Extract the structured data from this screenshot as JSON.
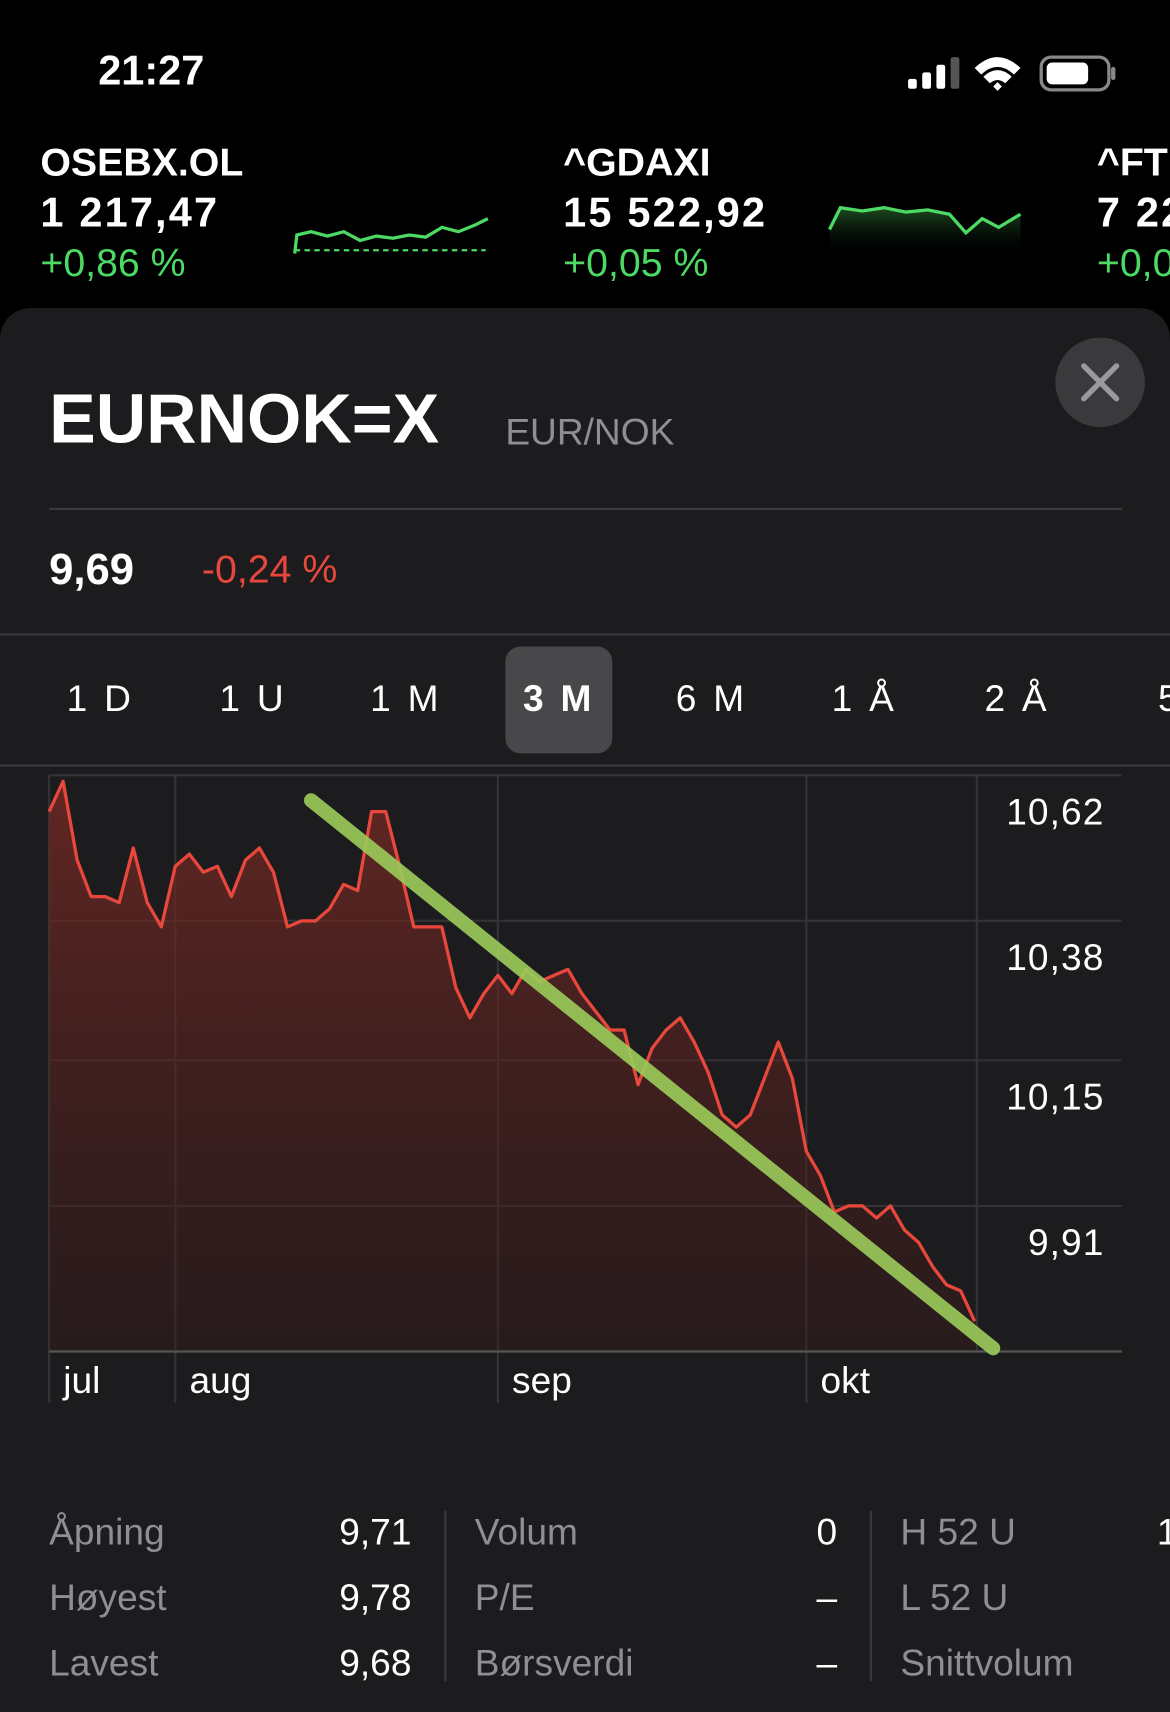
{
  "status_bar": {
    "time": "21:27"
  },
  "tickers": [
    {
      "symbol": "OSEBX.OL",
      "price": "1 217,47",
      "change": "+0,86 %"
    },
    {
      "symbol": "^GDAXI",
      "price": "15 522,92",
      "change": "+0,05 %"
    },
    {
      "symbol": "^FT",
      "price": "7 22",
      "change": "+0,0"
    }
  ],
  "header": {
    "symbol": "EURNOK=X",
    "name": "EUR/NOK",
    "price": "9,69",
    "change": "-0,24 %"
  },
  "ranges": {
    "items": [
      "1 D",
      "1 U",
      "1 M",
      "3 M",
      "6 M",
      "1 Å",
      "2 Å",
      "5"
    ],
    "selected": 3
  },
  "chart_data": {
    "type": "line",
    "color": "#e8483c",
    "x": [
      0,
      1,
      2,
      3,
      4,
      5,
      6,
      7,
      8,
      9,
      10,
      11,
      12,
      13,
      14,
      15,
      16,
      17,
      18,
      19,
      20,
      21,
      22,
      23,
      24,
      25,
      26,
      27,
      28,
      29,
      30,
      31,
      32,
      33,
      34,
      35,
      36,
      37,
      38,
      39,
      40,
      41,
      42,
      43,
      44,
      45,
      46,
      47,
      48,
      49,
      50,
      51,
      52,
      53,
      54,
      55,
      56,
      57,
      58,
      59,
      60,
      61,
      62,
      63,
      64,
      65,
      66
    ],
    "values": [
      10.56,
      10.61,
      10.48,
      10.42,
      10.42,
      10.41,
      10.5,
      10.41,
      10.37,
      10.47,
      10.49,
      10.46,
      10.47,
      10.42,
      10.48,
      10.5,
      10.46,
      10.37,
      10.38,
      10.38,
      10.4,
      10.44,
      10.43,
      10.56,
      10.56,
      10.47,
      10.37,
      10.37,
      10.37,
      10.27,
      10.22,
      10.26,
      10.29,
      10.26,
      10.3,
      10.28,
      10.29,
      10.3,
      10.26,
      10.23,
      10.2,
      10.2,
      10.11,
      10.17,
      10.2,
      10.22,
      10.18,
      10.13,
      10.06,
      10.04,
      10.06,
      10.12,
      10.18,
      10.12,
      10,
      9.96,
      9.9,
      9.91,
      9.91,
      9.89,
      9.91,
      9.87,
      9.85,
      9.81,
      9.78,
      9.77,
      9.72
    ],
    "xlim": [
      0,
      66
    ],
    "xticks": [
      {
        "value": 0,
        "label": "jul"
      },
      {
        "value": 9,
        "label": "aug"
      },
      {
        "value": 32,
        "label": "sep"
      },
      {
        "value": 54,
        "label": "okt"
      }
    ],
    "ylim": [
      9.67,
      10.62
    ],
    "yticks": [
      {
        "value": 10.62,
        "label": "10,62"
      },
      {
        "value": 10.38,
        "label": "10,38"
      },
      {
        "value": 10.15,
        "label": "10,15"
      },
      {
        "value": 9.91,
        "label": "9,91"
      }
    ],
    "grid": true
  },
  "stats": [
    [
      {
        "label": "Åpning",
        "value": "9,71"
      },
      {
        "label": "Høyest",
        "value": "9,78"
      },
      {
        "label": "Lavest",
        "value": "9,68"
      }
    ],
    [
      {
        "label": "Volum",
        "value": "0"
      },
      {
        "label": "P/E",
        "value": "–"
      },
      {
        "label": "Børsverdi",
        "value": "–"
      }
    ],
    [
      {
        "label": "H 52 U",
        "value": "1"
      },
      {
        "label": "L 52 U",
        "value": ""
      },
      {
        "label": "Snittvolum",
        "value": ""
      }
    ]
  ]
}
